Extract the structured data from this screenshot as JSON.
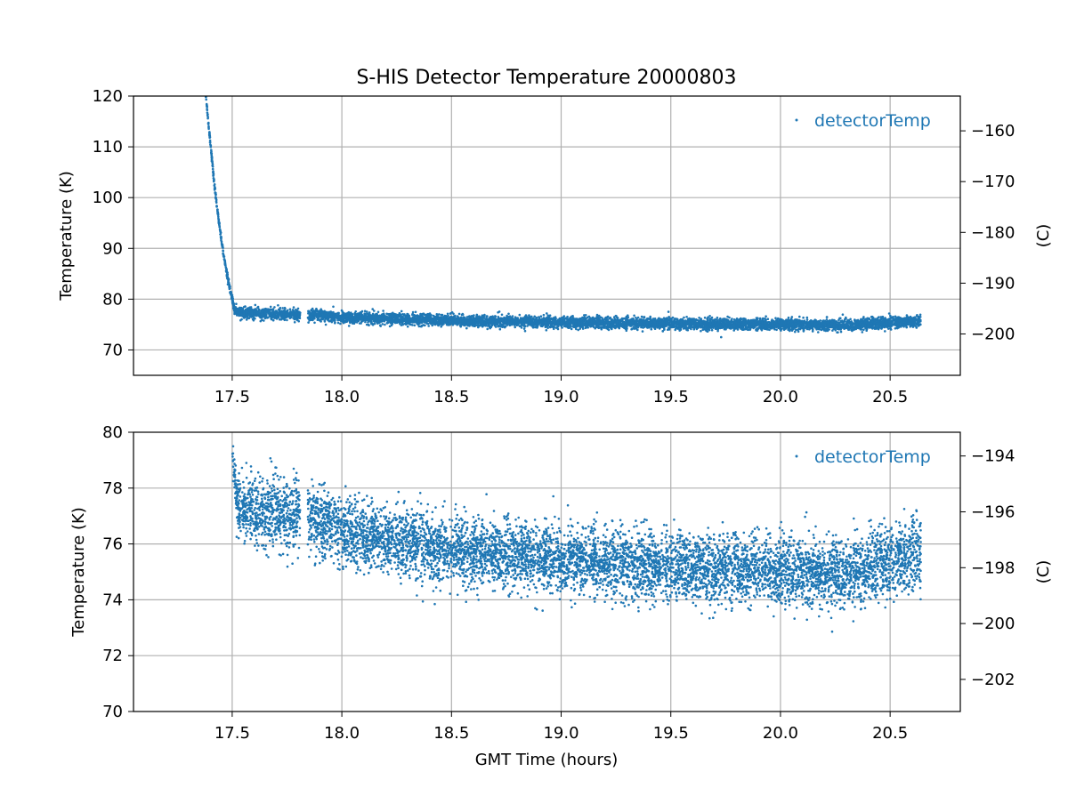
{
  "figure": {
    "title": "S-HIS Detector Temperature 20000803",
    "xlabel": "GMT Time (hours)"
  },
  "chart_data": [
    {
      "type": "scatter",
      "panel": "top",
      "title": "S-HIS Detector Temperature 20000803",
      "xlabel": "",
      "ylabel": "Temperature (K)",
      "ylabel_right": "(C)",
      "xlim": [
        17.05,
        20.82
      ],
      "ylim": [
        65,
        120
      ],
      "xticks": [
        "17.5",
        "18.0",
        "18.5",
        "19.0",
        "19.5",
        "20.0",
        "20.5"
      ],
      "yticks": [
        "70",
        "80",
        "90",
        "100",
        "110",
        "120"
      ],
      "yticks_right": [
        "−200",
        "−190",
        "−180",
        "−170",
        "−160"
      ],
      "grid": true,
      "legend": "top-right",
      "series": [
        {
          "name": "detectorTemp",
          "color": "#1f77b4",
          "x": [
            17.38,
            17.4,
            17.42,
            17.44,
            17.46,
            17.48,
            17.5,
            17.51,
            17.52,
            17.55,
            17.6,
            17.65,
            17.7,
            17.75,
            17.8,
            17.85,
            17.9,
            18.0,
            18.1,
            18.2,
            18.3,
            18.4,
            18.5,
            18.6,
            18.7,
            18.8,
            18.9,
            19.0,
            19.1,
            19.2,
            19.3,
            19.4,
            19.5,
            19.6,
            19.7,
            19.8,
            19.9,
            20.0,
            20.1,
            20.2,
            20.3,
            20.4,
            20.5,
            20.6,
            20.64
          ],
          "y": [
            120,
            111,
            102,
            95,
            89,
            84,
            80,
            78,
            77.5,
            77.3,
            77.2,
            77.2,
            77.1,
            77.0,
            77.0,
            76.9,
            76.8,
            76.5,
            76.3,
            76.1,
            76.0,
            75.9,
            75.8,
            75.7,
            75.6,
            75.6,
            75.5,
            75.4,
            75.4,
            75.3,
            75.3,
            75.2,
            75.2,
            75.1,
            75.1,
            75.1,
            75.1,
            75.0,
            75.0,
            74.9,
            74.9,
            75.2,
            75.4,
            75.6,
            75.7
          ],
          "spread": 0.6
        }
      ]
    },
    {
      "type": "scatter",
      "panel": "bottom",
      "xlabel": "GMT Time (hours)",
      "ylabel": "Temperature (K)",
      "ylabel_right": "(C)",
      "xlim": [
        17.05,
        20.82
      ],
      "ylim": [
        70,
        80
      ],
      "xticks": [
        "17.5",
        "18.0",
        "18.5",
        "19.0",
        "19.5",
        "20.0",
        "20.5"
      ],
      "yticks": [
        "70",
        "72",
        "74",
        "76",
        "78",
        "80"
      ],
      "yticks_right": [
        "−202",
        "−200",
        "−198",
        "−196",
        "−194"
      ],
      "grid": true,
      "legend": "top-right",
      "series": [
        {
          "name": "detectorTemp",
          "color": "#1f77b4",
          "x": [
            17.5,
            17.52,
            17.55,
            17.6,
            17.65,
            17.7,
            17.75,
            17.8,
            17.85,
            17.9,
            18.0,
            18.1,
            18.2,
            18.3,
            18.4,
            18.5,
            18.6,
            18.7,
            18.8,
            18.9,
            19.0,
            19.1,
            19.2,
            19.3,
            19.4,
            19.5,
            19.6,
            19.7,
            19.8,
            19.9,
            20.0,
            20.1,
            20.2,
            20.3,
            20.4,
            20.5,
            20.6,
            20.64
          ],
          "y": [
            79.5,
            77.6,
            77.3,
            77.2,
            77.2,
            77.1,
            77.0,
            77.0,
            76.9,
            76.8,
            76.5,
            76.3,
            76.1,
            76.0,
            75.9,
            75.8,
            75.7,
            75.6,
            75.6,
            75.5,
            75.4,
            75.4,
            75.3,
            75.3,
            75.2,
            75.2,
            75.1,
            75.1,
            75.1,
            75.1,
            75.0,
            75.0,
            74.9,
            74.9,
            75.2,
            75.4,
            75.6,
            75.7
          ],
          "spread": 0.6
        }
      ]
    }
  ]
}
